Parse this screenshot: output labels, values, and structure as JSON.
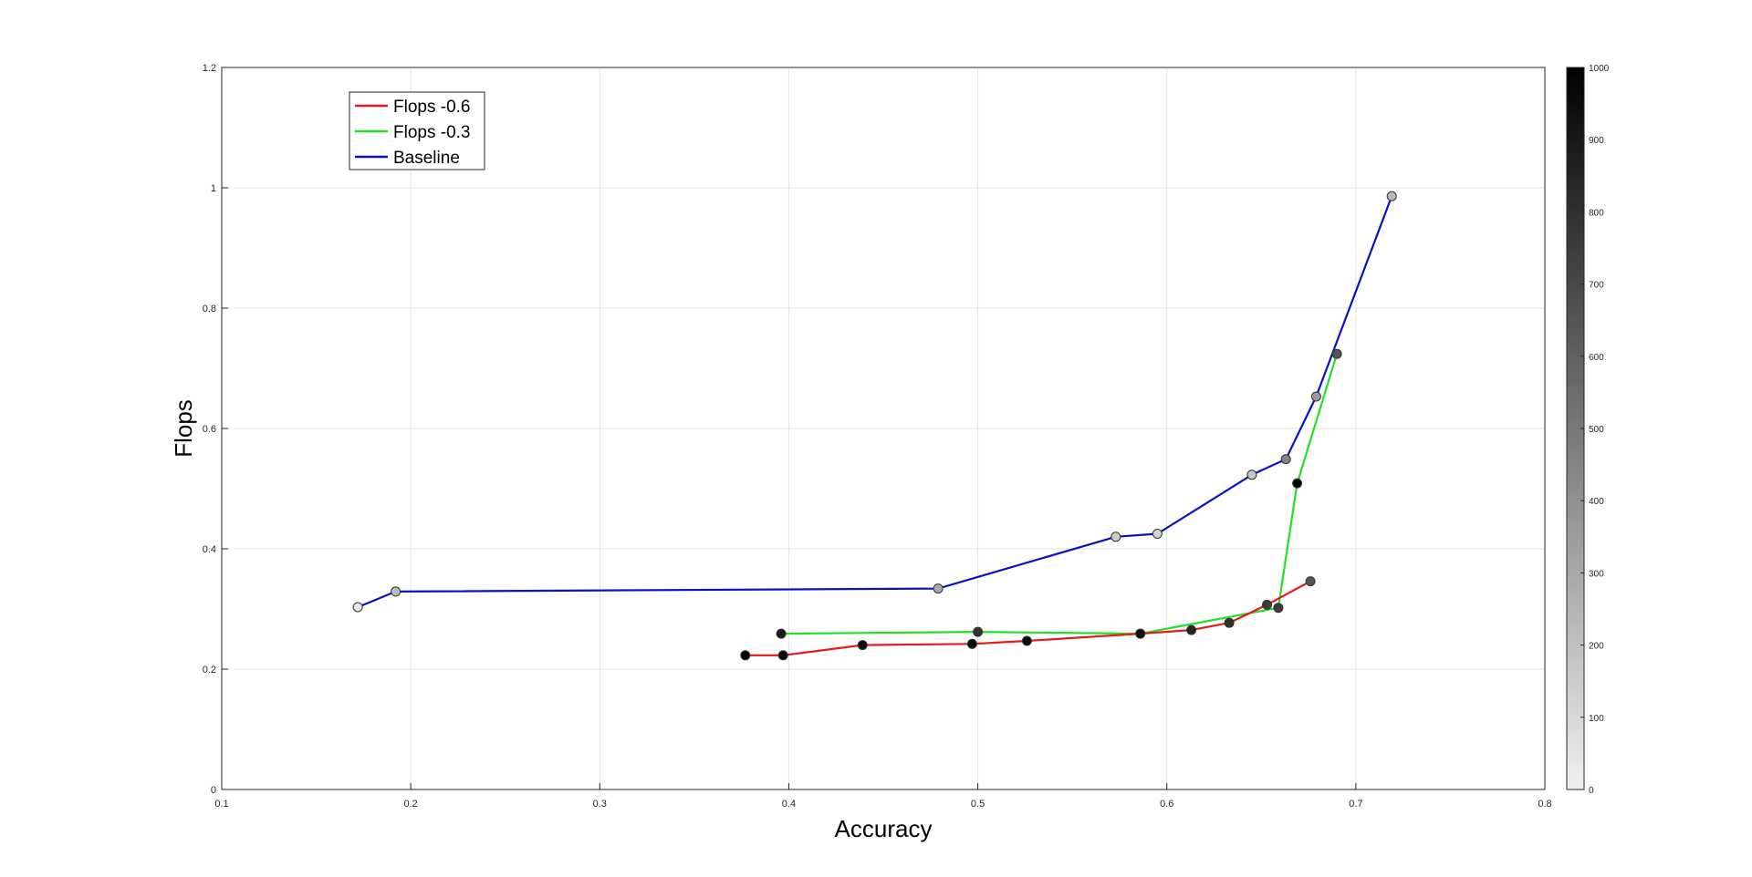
{
  "chart_data": {
    "type": "line",
    "title": "",
    "xlabel": "Accuracy",
    "ylabel": "Flops",
    "xlim": [
      0.1,
      0.8
    ],
    "ylim": [
      0,
      1.2
    ],
    "xticks": [
      "0.1",
      "0.2",
      "0.3",
      "0.4",
      "0.5",
      "0.6",
      "0.7",
      "0.8"
    ],
    "yticks": [
      "0",
      "0.2",
      "0.4",
      "0.6",
      "0.8",
      "1",
      "1.2"
    ],
    "grid": true,
    "legend_position": "top-left",
    "series": [
      {
        "name": "Flops -0.6",
        "color": "#e41a1c",
        "x": [
          0.377,
          0.397,
          0.439,
          0.497,
          0.526,
          0.586,
          0.613,
          0.633,
          0.653,
          0.676
        ],
        "y": [
          0.223,
          0.223,
          0.24,
          0.242,
          0.247,
          0.259,
          0.265,
          0.277,
          0.307,
          0.346
        ],
        "marker_shade": [
          1000,
          950,
          950,
          950,
          950,
          950,
          850,
          800,
          750,
          650
        ]
      },
      {
        "name": "Flops -0.3",
        "color": "#22e022",
        "x": [
          0.396,
          0.5,
          0.586,
          0.659,
          0.669,
          0.69
        ],
        "y": [
          0.259,
          0.262,
          0.259,
          0.302,
          0.509,
          0.724
        ],
        "marker_shade": [
          900,
          800,
          950,
          750,
          1000,
          650
        ]
      },
      {
        "name": "Baseline",
        "color": "#0a10c8",
        "x": [
          0.172,
          0.192,
          0.479,
          0.573,
          0.595,
          0.645,
          0.663,
          0.679,
          0.719
        ],
        "y": [
          0.303,
          0.329,
          0.334,
          0.42,
          0.425,
          0.523,
          0.549,
          0.653,
          0.986
        ],
        "marker_shade": [
          20,
          220,
          300,
          150,
          120,
          170,
          450,
          350,
          230
        ]
      }
    ],
    "colorbar": {
      "range": [
        0,
        1000
      ],
      "ticks": [
        "0",
        "100",
        "200",
        "300",
        "400",
        "500",
        "600",
        "700",
        "800",
        "900",
        "1000"
      ]
    }
  }
}
